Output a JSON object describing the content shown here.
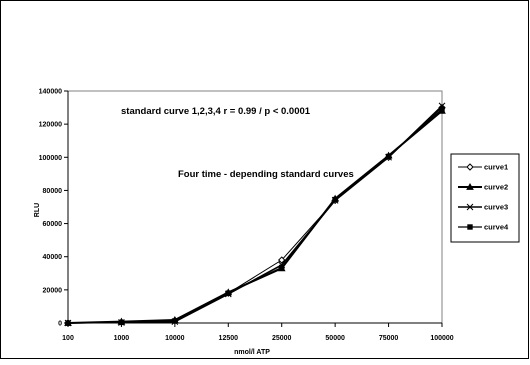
{
  "chart_data": {
    "type": "line",
    "title": "",
    "annotations": [
      "standard curve 1,2,3,4  r = 0.99 / p < 0.0001",
      "Four time - depending standard curves"
    ],
    "xlabel": "nmol/l  ATP",
    "ylabel": "RLU",
    "categories": [
      "100",
      "1000",
      "10000",
      "12500",
      "25000",
      "50000",
      "75000",
      "100000"
    ],
    "ylim": [
      0,
      140000
    ],
    "yticks": [
      "0",
      "20000",
      "40000",
      "60000",
      "80000",
      "100000",
      "120000",
      "140000"
    ],
    "grid": false,
    "legend_position": "right",
    "series": [
      {
        "name": "curve1",
        "marker": "diamond-open",
        "values": [
          0,
          500,
          1500,
          18000,
          38000,
          74000,
          100000,
          130000
        ]
      },
      {
        "name": "curve2",
        "marker": "triangle",
        "values": [
          0,
          800,
          1800,
          18500,
          33000,
          75000,
          101000,
          128000
        ]
      },
      {
        "name": "curve3",
        "marker": "x",
        "values": [
          0,
          300,
          800,
          17500,
          35000,
          74000,
          100000,
          131000
        ]
      },
      {
        "name": "curve4",
        "marker": "square",
        "values": [
          0,
          400,
          1200,
          18000,
          33500,
          74500,
          100500,
          129000
        ]
      }
    ]
  }
}
